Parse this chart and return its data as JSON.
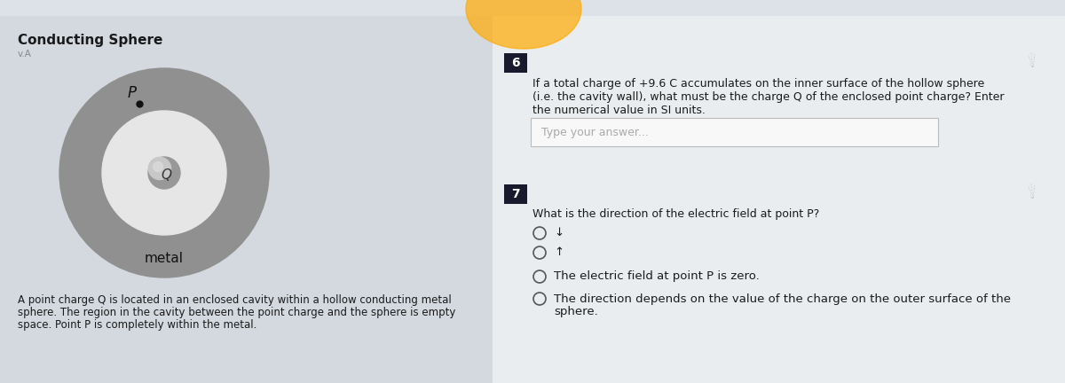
{
  "bg_left_color": "#d4d9e0",
  "bg_right_color": "#e8eaed",
  "title": "Conducting Sphere",
  "va_label": "v.A",
  "metal_label": "metal",
  "q_label": "Q",
  "p_label": "P",
  "description": "A point charge Q is located in an enclosed cavity within a hollow conducting metal\nsphere. The region in the cavity between the point charge and the sphere is empty\nspace. Point P is completely within the metal.",
  "outer_circle_color": "#909090",
  "inner_circle_color": "#e6e6e6",
  "q_ball_light": "#c8c8c8",
  "q_ball_dark": "#989898",
  "section6_label": "6",
  "section6_text_line1": "If a total charge of +9.6 C accumulates on the inner surface of the hollow sphere",
  "section6_text_line2": "(i.e. the cavity wall), what must be the charge Q of the enclosed point charge? Enter",
  "section6_text_line3": "the numerical value in SI units.",
  "answer_placeholder": "Type your answer...",
  "section7_label": "7",
  "section7_question": "What is the direction of the electric field at point P?",
  "option1": "↓",
  "option2": "↑",
  "option3": "The electric field at point P is zero.",
  "option4a": "The direction depends on the value of the charge on the outer surface of the",
  "option4b": "sphere.",
  "number_box_color": "#1a1a2e",
  "input_box_bg": "#f8f8f8",
  "input_border_color": "#bbbbbb",
  "orb_color": "#ffaa00",
  "pin_color": "#aaaaaa",
  "text_dark": "#1a1a1a",
  "text_mid": "#444444",
  "text_light": "#888888",
  "radio_color": "#555555"
}
